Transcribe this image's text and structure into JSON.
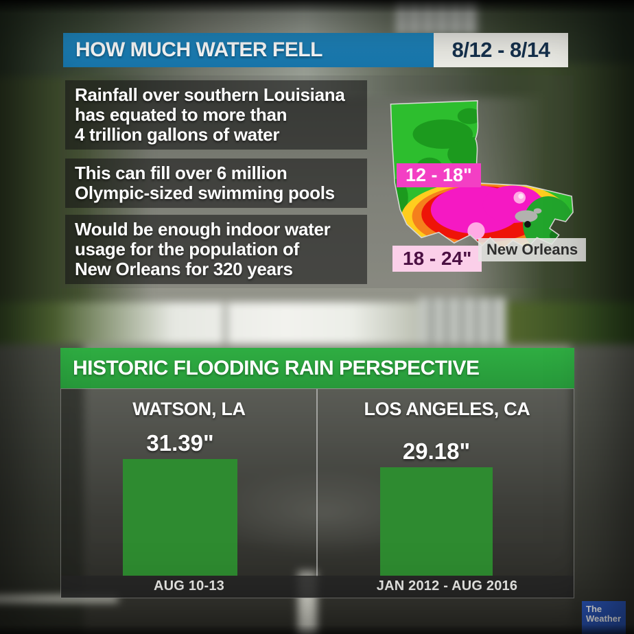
{
  "top_panel": {
    "title": "HOW MUCH WATER FELL",
    "date_range": "8/12 - 8/14",
    "facts": [
      "Rainfall over southern Louisiana\nhas equated to more than\n4 trillion gallons of water",
      "This can fill over 6 million\nOlympic-sized swimming pools",
      "Would be enough indoor water\nusage for the population of\nNew Orleans for 320 years"
    ],
    "map": {
      "region": "Louisiana",
      "band_labels": [
        "12 - 18\"",
        "18 - 24\""
      ],
      "city_label": "New Orleans",
      "band_colors": {
        "green": "#2dbe2e",
        "dark_green": "#1c9a1e",
        "yellow": "#ffcd1e",
        "orange": "#f5801c",
        "red": "#ee1408",
        "magenta": "#f519c3",
        "light_pink": "#ffaae4"
      }
    }
  },
  "bottom_panel": {
    "title": "HISTORIC FLOODING RAIN PERSPECTIVE"
  },
  "chart_data": {
    "type": "bar",
    "title": "HISTORIC FLOODING RAIN PERSPECTIVE",
    "categories": [
      "WATSON, LA",
      "LOS ANGELES, CA"
    ],
    "values": [
      31.39,
      29.18
    ],
    "value_labels": [
      "31.39\"",
      "29.18\""
    ],
    "period_labels": [
      "AUG 10-13",
      "JAN 2012 - AUG 2016"
    ],
    "unit": "inches of rain",
    "bar_color": "#2e8b30",
    "ylim": [
      0,
      34
    ],
    "grid": false,
    "legend": false
  },
  "logo": {
    "line1": "The",
    "line2": "Weather"
  },
  "colors": {
    "header_blue": "#1a7fb8",
    "header_green": "#2aa33d",
    "date_box_bg": "#f0f0ea",
    "date_text": "#16324f",
    "bar_green": "#2e8b30",
    "logo_blue": "#2a55b8"
  }
}
